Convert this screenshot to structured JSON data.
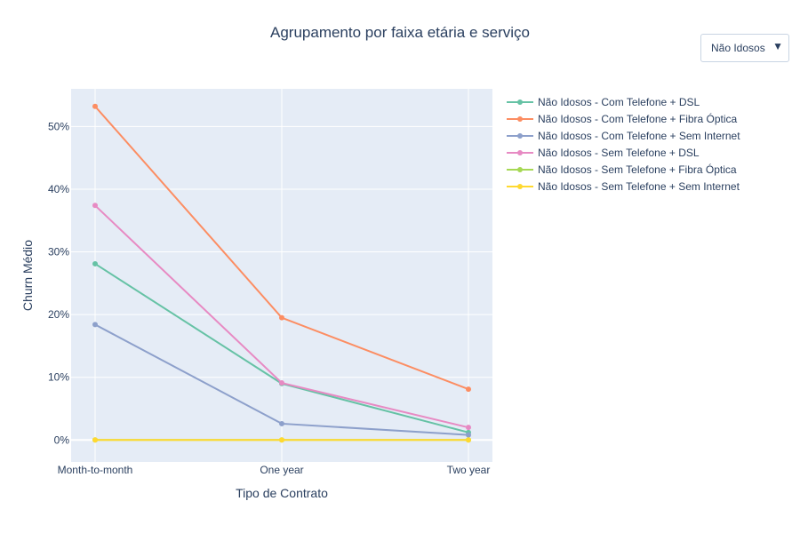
{
  "dropdown": {
    "selected": "Não Idosos",
    "arrow_icon": "triangle-down-icon"
  },
  "chart_data": {
    "type": "line",
    "title": "Agrupamento por faixa etária e serviço",
    "xlabel": "Tipo de Contrato",
    "ylabel": "Churn Médio",
    "categories": [
      "Month-to-month",
      "One year",
      "Two year"
    ],
    "y_ticks": [
      "0%",
      "10%",
      "20%",
      "30%",
      "40%",
      "50%"
    ],
    "ylim": [
      -0.035,
      0.56
    ],
    "grid": true,
    "legend_position": "right",
    "plot_background": "#e5ecf6",
    "series": [
      {
        "name": "Não Idosos - Com Telefone + DSL",
        "color": "#66c2a5",
        "values": [
          0.281,
          0.09,
          0.012
        ]
      },
      {
        "name": "Não Idosos - Com Telefone + Fibra Óptica",
        "color": "#fc8d62",
        "values": [
          0.532,
          0.195,
          0.081
        ]
      },
      {
        "name": "Não Idosos - Com Telefone + Sem Internet",
        "color": "#8da0cb",
        "values": [
          0.184,
          0.026,
          0.008
        ]
      },
      {
        "name": "Não Idosos - Sem Telefone + DSL",
        "color": "#e78ac3",
        "values": [
          0.374,
          0.091,
          0.02
        ]
      },
      {
        "name": "Não Idosos - Sem Telefone + Fibra Óptica",
        "color": "#a6d854",
        "values": [
          0.0,
          0.0,
          0.0
        ]
      },
      {
        "name": "Não Idosos - Sem Telefone + Sem Internet",
        "color": "#ffd92f",
        "values": [
          0.0,
          0.0,
          0.0
        ]
      }
    ]
  }
}
